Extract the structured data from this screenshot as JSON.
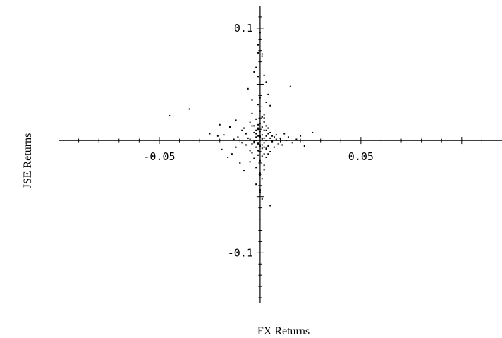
{
  "chart_data": {
    "type": "scatter",
    "title": "",
    "xlabel": "FX Returns",
    "ylabel": "JSE Returns",
    "xlim": [
      -0.1,
      0.12
    ],
    "ylim": [
      -0.145,
      0.12
    ],
    "x_ticks": [
      {
        "value": -0.05,
        "label": "-0.05"
      },
      {
        "value": 0.05,
        "label": "0.05"
      }
    ],
    "y_ticks": [
      {
        "value": 0.1,
        "label": "0.1"
      },
      {
        "value": -0.1,
        "label": "-0.1"
      }
    ],
    "grid": false,
    "legend": "none",
    "point_color": "#000000",
    "series": [
      {
        "values_x": [
          -0.045,
          -0.035,
          -0.025,
          -0.021,
          -0.02,
          -0.019,
          -0.018,
          -0.016,
          -0.015,
          -0.014,
          -0.013,
          -0.012,
          -0.012,
          -0.011,
          -0.01,
          -0.009,
          -0.009,
          -0.008,
          -0.008,
          -0.007,
          -0.007,
          -0.006,
          -0.006,
          -0.005,
          -0.005,
          -0.005,
          -0.004,
          -0.004,
          -0.004,
          -0.003,
          -0.003,
          -0.003,
          -0.003,
          -0.002,
          -0.002,
          -0.002,
          -0.002,
          -0.002,
          -0.001,
          -0.001,
          -0.001,
          -0.001,
          -0.001,
          -0.001,
          0.0,
          0.0,
          0.0,
          0.0,
          0.0,
          0.0,
          0.0,
          0.0,
          0.001,
          0.001,
          0.001,
          0.001,
          0.001,
          0.001,
          0.002,
          0.002,
          0.002,
          0.002,
          0.002,
          0.003,
          0.003,
          0.003,
          0.003,
          0.004,
          0.004,
          0.004,
          0.005,
          0.005,
          0.005,
          0.006,
          0.006,
          0.007,
          0.007,
          0.008,
          0.008,
          0.009,
          0.01,
          0.011,
          0.012,
          0.013,
          0.014,
          0.016,
          0.018,
          0.02,
          0.022,
          0.026,
          -0.003,
          -0.002,
          -0.001,
          0.0,
          0.001,
          0.002,
          0.003,
          0.004,
          -0.004,
          0.005,
          0.0,
          0.001,
          0.002,
          -0.001,
          0.003,
          -0.002,
          0.0,
          0.001,
          0.006,
          0.015,
          -0.003,
          0.0,
          0.002,
          -0.001,
          0.004,
          0.003,
          -0.005,
          0.002,
          0.0,
          0.001,
          -0.002,
          0.0,
          0.001,
          0.005,
          -0.001,
          0.002,
          0.003,
          -0.004,
          0.0,
          0.001,
          0.0,
          -0.001,
          0.002,
          0.0,
          0.001,
          -0.002,
          0.003,
          -0.001,
          0.0,
          0.002
        ],
        "values_y": [
          0.022,
          0.028,
          0.006,
          0.004,
          0.014,
          -0.008,
          0.005,
          -0.015,
          0.012,
          -0.012,
          0.001,
          -0.006,
          0.018,
          0.003,
          -0.02,
          0.009,
          -0.002,
          0.011,
          -0.027,
          0.006,
          -0.004,
          0.046,
          0.002,
          -0.009,
          0.016,
          0.001,
          0.024,
          -0.003,
          -0.011,
          0.007,
          -0.001,
          0.013,
          -0.016,
          0.003,
          -0.006,
          0.019,
          0.0,
          -0.024,
          0.01,
          -0.003,
          0.032,
          -0.013,
          0.004,
          -0.002,
          0.0,
          0.008,
          -0.005,
          0.015,
          -0.01,
          0.026,
          -0.018,
          0.003,
          0.001,
          -0.007,
          0.012,
          0.021,
          -0.004,
          0.005,
          0.002,
          -0.012,
          0.009,
          0.017,
          -0.002,
          0.004,
          -0.008,
          0.013,
          0.0,
          0.006,
          -0.005,
          0.011,
          0.002,
          -0.01,
          0.007,
          -0.001,
          0.004,
          0.003,
          -0.006,
          0.001,
          0.005,
          -0.003,
          0.002,
          -0.004,
          0.006,
          0.0,
          0.003,
          -0.002,
          0.001,
          0.004,
          -0.005,
          0.007,
          0.061,
          0.065,
          0.085,
          0.09,
          0.077,
          0.058,
          0.052,
          0.041,
          0.036,
          0.031,
          0.026,
          0.021,
          0.016,
          0.011,
          0.009,
          0.006,
          0.004,
          0.002,
          0.0,
          0.048,
          -0.002,
          -0.004,
          -0.006,
          -0.009,
          -0.012,
          -0.015,
          -0.019,
          -0.022,
          -0.029,
          -0.034,
          -0.039,
          -0.044,
          -0.052,
          -0.058,
          0.078,
          0.02,
          0.034,
          0.013,
          0.096,
          0.075,
          -0.046,
          0.057,
          -0.026,
          0.038,
          -0.014,
          0.009,
          -0.007,
          0.014,
          -0.031,
          0.023
        ]
      }
    ]
  }
}
